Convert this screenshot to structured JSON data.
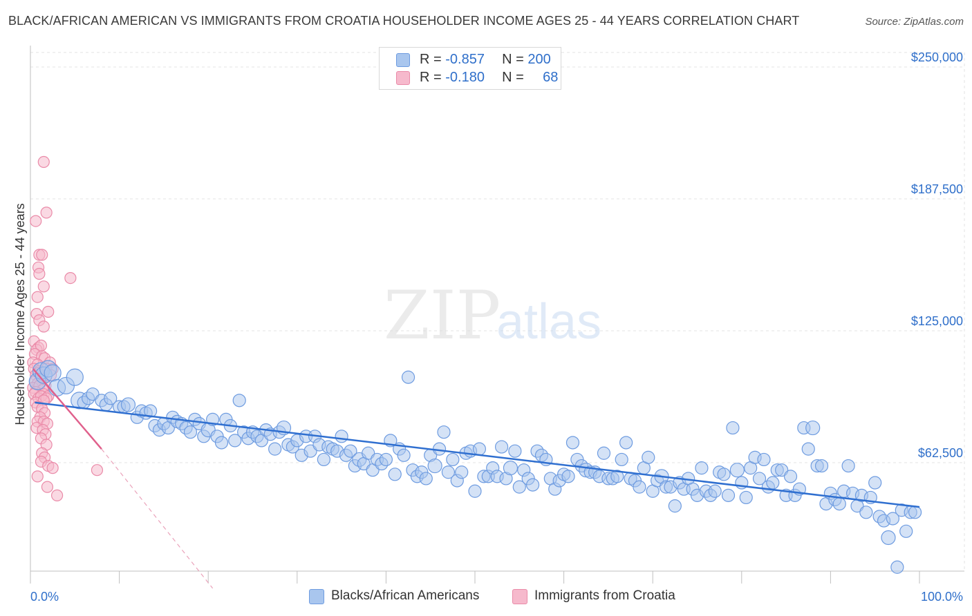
{
  "title": "BLACK/AFRICAN AMERICAN VS IMMIGRANTS FROM CROATIA HOUSEHOLDER INCOME AGES 25 - 44 YEARS CORRELATION CHART",
  "source": "Source: ZipAtlas.com",
  "watermark": {
    "zip": "ZIP",
    "atlas": "atlas"
  },
  "legend": {
    "blue": {
      "r_label": "R =",
      "r_value": "-0.857",
      "n_label": "N =",
      "n_value": "200"
    },
    "pink": {
      "r_label": "R =",
      "r_value": "-0.180",
      "n_label": "N =",
      "n_value": "68"
    }
  },
  "bottom_legend": {
    "blue": "Blacks/African Americans",
    "pink": "Immigrants from Croatia"
  },
  "colors": {
    "blue_fill": "#a9c6ee",
    "blue_stroke": "#6d9be0",
    "blue_line": "#2f6fd0",
    "pink_fill": "#f6b9cc",
    "pink_stroke": "#ea8aa8",
    "pink_line": "#e0608c",
    "grid": "#e3e3e3",
    "tick_text": "#2f6fca"
  },
  "chart_data": {
    "type": "scatter",
    "title": "BLACK/AFRICAN AMERICAN VS IMMIGRANTS FROM CROATIA HOUSEHOLDER INCOME AGES 25 - 44 YEARS CORRELATION CHART",
    "xlabel": "",
    "ylabel": "Householder Income Ages 25 - 44 years",
    "xlim": [
      0,
      100
    ],
    "ylim": [
      3000,
      260000
    ],
    "x_tick_labels": [
      "0.0%",
      "100.0%"
    ],
    "y_ticks": [
      62500,
      125000,
      187500,
      250000
    ],
    "y_tick_labels": [
      "$62,500",
      "$125,000",
      "$187,500",
      "$250,000"
    ],
    "grid": true,
    "series": [
      {
        "name": "Blacks/African Americans",
        "trend": {
          "x": [
            0.5,
            100
          ],
          "y": [
            91000,
            41500
          ]
        },
        "points": [
          [
            0.8,
            101000
          ],
          [
            1.2,
            106000
          ],
          [
            1.5,
            104000
          ],
          [
            2,
            107000
          ],
          [
            2.5,
            105000
          ],
          [
            3,
            98000
          ],
          [
            4,
            99000
          ],
          [
            5,
            103000
          ],
          [
            5.5,
            92000
          ],
          [
            6,
            91000
          ],
          [
            6.5,
            93000
          ],
          [
            7,
            95000
          ],
          [
            8,
            92000
          ],
          [
            8.5,
            90000
          ],
          [
            9,
            93000
          ],
          [
            10,
            89000
          ],
          [
            10.5,
            89000
          ],
          [
            11,
            90000
          ],
          [
            12,
            84000
          ],
          [
            12.5,
            87000
          ],
          [
            13,
            86000
          ],
          [
            13.5,
            87000
          ],
          [
            14,
            80000
          ],
          [
            14.5,
            78000
          ],
          [
            15,
            81000
          ],
          [
            15.5,
            79000
          ],
          [
            16,
            84000
          ],
          [
            16.5,
            82000
          ],
          [
            17,
            81000
          ],
          [
            17.5,
            79000
          ],
          [
            18,
            77000
          ],
          [
            18.5,
            83000
          ],
          [
            19,
            81000
          ],
          [
            19.5,
            75000
          ],
          [
            20,
            78000
          ],
          [
            20.5,
            83000
          ],
          [
            21,
            75000
          ],
          [
            21.5,
            72000
          ],
          [
            22,
            83000
          ],
          [
            22.5,
            80000
          ],
          [
            23,
            73000
          ],
          [
            23.5,
            92000
          ],
          [
            24,
            77000
          ],
          [
            24.5,
            74000
          ],
          [
            25,
            77000
          ],
          [
            25.5,
            75000
          ],
          [
            26,
            73000
          ],
          [
            26.5,
            78000
          ],
          [
            27,
            76000
          ],
          [
            27.5,
            69000
          ],
          [
            28,
            77000
          ],
          [
            28.5,
            79000
          ],
          [
            29,
            71000
          ],
          [
            29.5,
            70000
          ],
          [
            30,
            73000
          ],
          [
            30.5,
            66000
          ],
          [
            31,
            75000
          ],
          [
            31.5,
            68000
          ],
          [
            32,
            75000
          ],
          [
            32.5,
            71000
          ],
          [
            33,
            64000
          ],
          [
            33.5,
            70000
          ],
          [
            34,
            69000
          ],
          [
            34.5,
            68000
          ],
          [
            35,
            75000
          ],
          [
            35.5,
            66000
          ],
          [
            36,
            68000
          ],
          [
            36.5,
            61000
          ],
          [
            37,
            64000
          ],
          [
            37.5,
            62000
          ],
          [
            38,
            67000
          ],
          [
            38.5,
            59000
          ],
          [
            39,
            64000
          ],
          [
            39.5,
            62000
          ],
          [
            40,
            64000
          ],
          [
            40.5,
            73000
          ],
          [
            41,
            57000
          ],
          [
            41.5,
            69000
          ],
          [
            42,
            66000
          ],
          [
            42.5,
            103000
          ],
          [
            43,
            59000
          ],
          [
            43.5,
            56000
          ],
          [
            44,
            58000
          ],
          [
            44.5,
            55000
          ],
          [
            45,
            66000
          ],
          [
            45.5,
            61000
          ],
          [
            46,
            69000
          ],
          [
            46.5,
            77000
          ],
          [
            47,
            58000
          ],
          [
            47.5,
            64000
          ],
          [
            48,
            54000
          ],
          [
            48.5,
            58000
          ],
          [
            49,
            67000
          ],
          [
            49.5,
            68000
          ],
          [
            50,
            49000
          ],
          [
            50.5,
            69000
          ],
          [
            51,
            56000
          ],
          [
            51.5,
            56000
          ],
          [
            52,
            60000
          ],
          [
            52.5,
            56000
          ],
          [
            53,
            70000
          ],
          [
            53.5,
            55000
          ],
          [
            54,
            60000
          ],
          [
            54.5,
            68000
          ],
          [
            55,
            51000
          ],
          [
            55.5,
            59000
          ],
          [
            56,
            55000
          ],
          [
            56.5,
            52000
          ],
          [
            57,
            68000
          ],
          [
            57.5,
            66000
          ],
          [
            58,
            64000
          ],
          [
            58.5,
            55000
          ],
          [
            59,
            50000
          ],
          [
            59.5,
            54000
          ],
          [
            60,
            57000
          ],
          [
            60.5,
            56000
          ],
          [
            61,
            72000
          ],
          [
            61.5,
            64000
          ],
          [
            62,
            61000
          ],
          [
            62.5,
            59000
          ],
          [
            63,
            58000
          ],
          [
            63.5,
            58000
          ],
          [
            64,
            56000
          ],
          [
            64.5,
            67000
          ],
          [
            65,
            55000
          ],
          [
            65.5,
            55000
          ],
          [
            66,
            56000
          ],
          [
            66.5,
            64000
          ],
          [
            67,
            72000
          ],
          [
            67.5,
            55000
          ],
          [
            68,
            54000
          ],
          [
            68.5,
            51000
          ],
          [
            69,
            60000
          ],
          [
            69.5,
            65000
          ],
          [
            70,
            49000
          ],
          [
            70.5,
            54000
          ],
          [
            71,
            56000
          ],
          [
            71.5,
            51000
          ],
          [
            72,
            51000
          ],
          [
            72.5,
            42000
          ],
          [
            73,
            53000
          ],
          [
            73.5,
            50000
          ],
          [
            74,
            55000
          ],
          [
            74.5,
            50000
          ],
          [
            75,
            47000
          ],
          [
            75.5,
            60000
          ],
          [
            76,
            49000
          ],
          [
            76.5,
            47000
          ],
          [
            77,
            49000
          ],
          [
            77.5,
            58000
          ],
          [
            78,
            57000
          ],
          [
            78.5,
            47000
          ],
          [
            79,
            79000
          ],
          [
            79.5,
            59000
          ],
          [
            80,
            53000
          ],
          [
            80.5,
            46000
          ],
          [
            81,
            60000
          ],
          [
            81.5,
            65000
          ],
          [
            82,
            55000
          ],
          [
            82.5,
            64000
          ],
          [
            83,
            51000
          ],
          [
            83.5,
            53000
          ],
          [
            84,
            59000
          ],
          [
            84.5,
            59000
          ],
          [
            85,
            47000
          ],
          [
            85.5,
            56000
          ],
          [
            86,
            47000
          ],
          [
            86.5,
            50000
          ],
          [
            87,
            79000
          ],
          [
            87.5,
            69000
          ],
          [
            88,
            79000
          ],
          [
            88.5,
            61000
          ],
          [
            89,
            61000
          ],
          [
            89.5,
            43000
          ],
          [
            90,
            48000
          ],
          [
            90.5,
            45000
          ],
          [
            91,
            43000
          ],
          [
            91.5,
            49000
          ],
          [
            92,
            61000
          ],
          [
            92.5,
            48000
          ],
          [
            93,
            42000
          ],
          [
            93.5,
            47000
          ],
          [
            94,
            39000
          ],
          [
            94.5,
            46000
          ],
          [
            95,
            53000
          ],
          [
            95.5,
            37000
          ],
          [
            96,
            35000
          ],
          [
            96.5,
            27000
          ],
          [
            97,
            36000
          ],
          [
            97.5,
            13000
          ],
          [
            98,
            40000
          ],
          [
            98.5,
            30000
          ],
          [
            99,
            39000
          ],
          [
            99.5,
            39000
          ]
        ]
      },
      {
        "name": "Immigrants from Croatia",
        "trend_solid": {
          "x": [
            0.3,
            8
          ],
          "y": [
            107000,
            69000
          ]
        },
        "trend_dashed": {
          "x": [
            8,
            20.5
          ],
          "y": [
            69000,
            3000
          ]
        },
        "points": [
          [
            1.5,
            205000
          ],
          [
            1.8,
            181000
          ],
          [
            0.6,
            177000
          ],
          [
            1,
            161000
          ],
          [
            1.3,
            161000
          ],
          [
            0.9,
            155000
          ],
          [
            1,
            152000
          ],
          [
            4.5,
            150000
          ],
          [
            1.5,
            146000
          ],
          [
            0.8,
            141000
          ],
          [
            2,
            134000
          ],
          [
            0.7,
            133000
          ],
          [
            1,
            130000
          ],
          [
            1.5,
            127000
          ],
          [
            0.4,
            120000
          ],
          [
            0.9,
            117000
          ],
          [
            0.7,
            116000
          ],
          [
            1.2,
            118000
          ],
          [
            0.5,
            114000
          ],
          [
            1.3,
            113000
          ],
          [
            1.6,
            112000
          ],
          [
            0.3,
            110000
          ],
          [
            0.8,
            109000
          ],
          [
            2.2,
            110000
          ],
          [
            0.4,
            107000
          ],
          [
            1,
            106000
          ],
          [
            1.8,
            107000
          ],
          [
            2.5,
            107000
          ],
          [
            0.6,
            104000
          ],
          [
            0.9,
            105000
          ],
          [
            2.3,
            104000
          ],
          [
            0.5,
            101000
          ],
          [
            1.3,
            102000
          ],
          [
            0.8,
            100000
          ],
          [
            1.7,
            99000
          ],
          [
            0.3,
            98000
          ],
          [
            1,
            99000
          ],
          [
            1.4,
            97000
          ],
          [
            0.6,
            96000
          ],
          [
            1.5,
            95000
          ],
          [
            2,
            94000
          ],
          [
            0.4,
            95000
          ],
          [
            0.9,
            93000
          ],
          [
            1.2,
            94000
          ],
          [
            1.8,
            93000
          ],
          [
            0.6,
            91000
          ],
          [
            1.5,
            92000
          ],
          [
            0.8,
            89000
          ],
          [
            1.3,
            88000
          ],
          [
            1.6,
            86000
          ],
          [
            1.1,
            84000
          ],
          [
            0.8,
            82000
          ],
          [
            1.5,
            82000
          ],
          [
            1.9,
            81000
          ],
          [
            0.7,
            79000
          ],
          [
            1.4,
            78000
          ],
          [
            1.7,
            76000
          ],
          [
            1.2,
            74000
          ],
          [
            1.8,
            71000
          ],
          [
            1.3,
            67000
          ],
          [
            1.6,
            65000
          ],
          [
            1.2,
            63000
          ],
          [
            2,
            61000
          ],
          [
            2.5,
            60000
          ],
          [
            7.5,
            59000
          ],
          [
            0.8,
            56000
          ],
          [
            1.9,
            51000
          ],
          [
            3,
            47000
          ]
        ]
      }
    ]
  }
}
